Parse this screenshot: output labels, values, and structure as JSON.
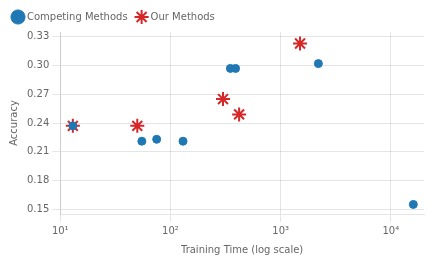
{
  "chart_data": {
    "type": "scatter",
    "xlabel": "Training Time (log scale)",
    "ylabel": "Accuracy",
    "log": "x",
    "xlim": [
      10,
      20000
    ],
    "ylim": [
      0.145,
      0.335
    ],
    "xticks": [
      {
        "value": 10,
        "label": "10¹"
      },
      {
        "value": 100,
        "label": "10²"
      },
      {
        "value": 1000,
        "label": "10³"
      },
      {
        "value": 10000,
        "label": "10⁴"
      }
    ],
    "yticks": [
      0.15,
      0.18,
      0.21,
      0.24,
      0.27,
      {
        "value": 0.3,
        "label": "0.30"
      },
      0.33
    ],
    "grid": true,
    "legend": "upper left",
    "series": [
      {
        "name": "Competing Methods",
        "color": "#1f77b4",
        "marker": "circle",
        "x": [
          13,
          55,
          75,
          130,
          350,
          390,
          2200,
          16000
        ],
        "values": [
          0.237,
          0.221,
          0.223,
          0.221,
          0.297,
          0.297,
          0.302,
          0.155
        ]
      },
      {
        "name": "Our Methods",
        "color": "#d62728",
        "marker": "star",
        "x": [
          13,
          50,
          300,
          420,
          1500
        ],
        "values": [
          0.237,
          0.237,
          0.265,
          0.249,
          0.323
        ]
      }
    ]
  }
}
